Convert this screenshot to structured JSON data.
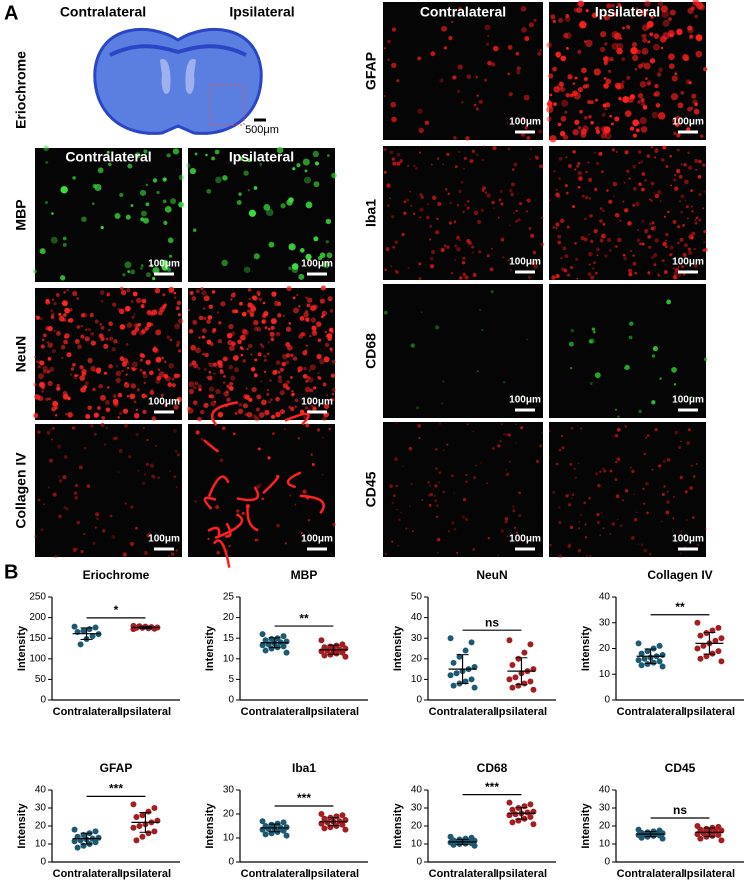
{
  "panel_a": {
    "label": "A",
    "eriochrome": {
      "row_label": "Eriochrome",
      "columns": [
        "Contralateral",
        "Ipsilateral"
      ],
      "scale": "500μm"
    },
    "left_columns": [
      "Contralateral",
      "Ipsilateral"
    ],
    "right_columns": [
      "Contralateral",
      "Ipsilateral"
    ],
    "left_rows": [
      {
        "label": "MBP",
        "scales": [
          "100μm",
          "100μm"
        ]
      },
      {
        "label": "NeuN",
        "scales": [
          "100μm",
          "100μm"
        ]
      },
      {
        "label": "Collagen IV",
        "scales": [
          "100μm",
          "100μm"
        ]
      }
    ],
    "right_rows": [
      {
        "label": "GFAP",
        "scales": [
          "100μm",
          "100μm"
        ]
      },
      {
        "label": "Iba1",
        "scales": [
          "100μm",
          "100μm"
        ]
      },
      {
        "label": "CD68",
        "scales": [
          "100μm",
          "100μm"
        ]
      },
      {
        "label": "CD45",
        "scales": [
          "100μm",
          "100μm"
        ]
      }
    ]
  },
  "panel_b_label": "B",
  "chart_data": [
    {
      "type": "scatter",
      "title": "Eriochrome",
      "y_label": "Intensity",
      "categories": [
        "Contralateral",
        "Ipsilateral"
      ],
      "colors": [
        "#1d5a72",
        "#a31e22"
      ],
      "values": [
        [
          178,
          176,
          172,
          168,
          165,
          160,
          155,
          148,
          135
        ],
        [
          172,
          173,
          174,
          175,
          175,
          176,
          177,
          178,
          179,
          180
        ]
      ],
      "means": [
        161,
        176
      ],
      "sds": [
        14,
        2.5
      ],
      "significance": "*",
      "ylim": [
        0,
        250
      ],
      "yticks": [
        0,
        50,
        100,
        150,
        200,
        250
      ]
    },
    {
      "type": "scatter",
      "title": "MBP",
      "y_label": "Intensity",
      "categories": [
        "Contralateral",
        "Ipsilateral"
      ],
      "colors": [
        "#1d5a72",
        "#a31e22"
      ],
      "values": [
        [
          16,
          15.5,
          15,
          14.8,
          14.5,
          14.2,
          14,
          13.8,
          13.5,
          13.3,
          13,
          12.8,
          12.5,
          12,
          11.5
        ],
        [
          14.5,
          13.5,
          13.2,
          13,
          12.8,
          12.5,
          12.3,
          12.1,
          12,
          11.8,
          11.5,
          11.3,
          11,
          10.8,
          10.5
        ]
      ],
      "means": [
        13.9,
        12.2
      ],
      "sds": [
        1.2,
        1.1
      ],
      "significance": "**",
      "ylim": [
        0,
        25
      ],
      "yticks": [
        0,
        5,
        10,
        15,
        20,
        25
      ]
    },
    {
      "type": "scatter",
      "title": "NeuN",
      "y_label": "Intensity",
      "categories": [
        "Contralateral",
        "Ipsilateral"
      ],
      "colors": [
        "#1d5a72",
        "#a31e22"
      ],
      "values": [
        [
          30,
          28,
          24,
          21,
          18,
          16,
          15,
          14,
          13,
          12,
          10,
          9,
          8,
          7,
          6
        ],
        [
          29,
          27,
          23,
          20,
          17,
          15,
          14,
          13,
          11,
          10,
          9,
          8,
          7,
          6,
          5
        ]
      ],
      "means": [
        15,
        14
      ],
      "sds": [
        7,
        6.5
      ],
      "significance": "ns",
      "ylim": [
        0,
        50
      ],
      "yticks": [
        0,
        10,
        20,
        30,
        40,
        50
      ]
    },
    {
      "type": "scatter",
      "title": "Collagen IV",
      "y_label": "Intensity",
      "categories": [
        "Contralateral",
        "Ipsilateral"
      ],
      "colors": [
        "#1d5a72",
        "#a31e22"
      ],
      "values": [
        [
          22,
          21,
          20,
          19,
          18,
          17.5,
          17,
          16.5,
          16,
          15.5,
          15,
          14.5,
          14,
          13.5,
          13
        ],
        [
          30,
          28,
          27,
          26,
          25,
          24,
          23,
          22,
          21,
          20,
          19,
          18,
          17,
          16,
          15
        ]
      ],
      "means": [
        17,
        22
      ],
      "sds": [
        2.8,
        4.2
      ],
      "significance": "**",
      "ylim": [
        0,
        40
      ],
      "yticks": [
        0,
        10,
        20,
        30,
        40
      ]
    },
    {
      "type": "scatter",
      "title": "GFAP",
      "y_label": "Intensity",
      "categories": [
        "Contralateral",
        "Ipsilateral"
      ],
      "colors": [
        "#1d5a72",
        "#a31e22"
      ],
      "values": [
        [
          18,
          17,
          16,
          15,
          14,
          13.5,
          13,
          12.5,
          12,
          11.5,
          11,
          10,
          9,
          8
        ],
        [
          32,
          30,
          28,
          26,
          25,
          23,
          22,
          21,
          20,
          19,
          17,
          16,
          14,
          12
        ]
      ],
      "means": [
        13,
        22
      ],
      "sds": [
        3,
        5.5
      ],
      "significance": "***",
      "ylim": [
        0,
        40
      ],
      "yticks": [
        0,
        10,
        20,
        30,
        40
      ]
    },
    {
      "type": "scatter",
      "title": "Iba1",
      "y_label": "Intensity",
      "categories": [
        "Contralateral",
        "Ipsilateral"
      ],
      "colors": [
        "#1d5a72",
        "#a31e22"
      ],
      "values": [
        [
          17,
          16.5,
          16,
          15.5,
          15,
          14.5,
          14.2,
          14,
          13.8,
          13.5,
          13,
          12.5,
          12,
          11.5,
          11
        ],
        [
          20,
          19.5,
          19,
          18.5,
          18,
          17.5,
          17,
          16.8,
          16.5,
          16,
          15.5,
          15,
          14.5,
          14,
          13.5
        ]
      ],
      "means": [
        14.2,
        16.8
      ],
      "sds": [
        1.6,
        1.7
      ],
      "significance": "***",
      "ylim": [
        0,
        30
      ],
      "yticks": [
        0,
        10,
        20,
        30
      ]
    },
    {
      "type": "scatter",
      "title": "CD68",
      "y_label": "Intensity",
      "categories": [
        "Contralateral",
        "Ipsilateral"
      ],
      "colors": [
        "#1d5a72",
        "#a31e22"
      ],
      "values": [
        [
          14,
          13.5,
          13,
          12.5,
          12,
          11.8,
          11.5,
          11.2,
          11,
          10.8,
          10.5,
          10.2,
          10,
          9.5,
          9
        ],
        [
          33,
          32,
          31,
          30,
          29,
          28,
          27.5,
          27,
          26.5,
          26,
          25,
          24,
          23,
          22,
          21
        ]
      ],
      "means": [
        11.2,
        27
      ],
      "sds": [
        1.4,
        3.2
      ],
      "significance": "***",
      "ylim": [
        0,
        40
      ],
      "yticks": [
        0,
        10,
        20,
        30,
        40
      ]
    },
    {
      "type": "scatter",
      "title": "CD45",
      "y_label": "Intensity",
      "categories": [
        "Contralateral",
        "Ipsilateral"
      ],
      "colors": [
        "#1d5a72",
        "#a31e22"
      ],
      "values": [
        [
          18,
          17.5,
          17,
          16.5,
          16.2,
          16,
          15.8,
          15.5,
          15.2,
          15,
          14.8,
          14.5,
          14,
          13.5,
          13
        ],
        [
          20,
          19.5,
          19,
          18.5,
          18,
          17.5,
          17,
          16.5,
          16,
          15.5,
          15,
          14.5,
          14,
          13,
          12
        ]
      ],
      "means": [
        15.5,
        16.5
      ],
      "sds": [
        1.4,
        2.4
      ],
      "significance": "ns",
      "ylim": [
        0,
        40
      ],
      "yticks": [
        0,
        10,
        20,
        30,
        40
      ]
    }
  ]
}
